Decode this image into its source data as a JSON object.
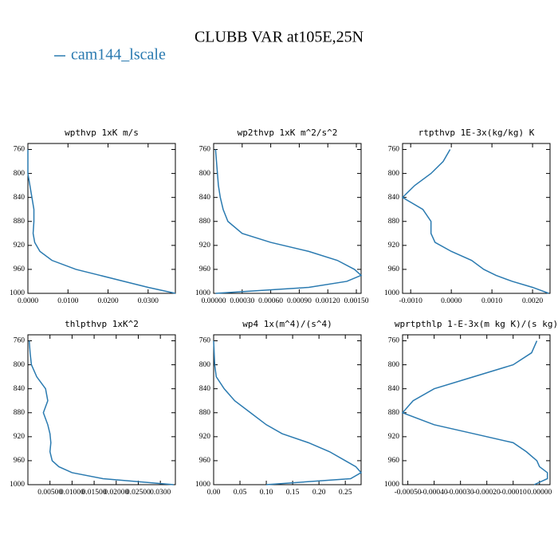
{
  "title": "CLUBB VAR at105E,25N",
  "legend": {
    "name": "cam144_lscale",
    "color": "#2a7ab0"
  },
  "chart_data": [
    {
      "type": "line",
      "title": "wpthvp  1xK m/s",
      "y": [
        760,
        780,
        800,
        820,
        840,
        860,
        880,
        900,
        915,
        930,
        945,
        960,
        970,
        980,
        990,
        1000
      ],
      "values": [
        0,
        0,
        0,
        0.0005,
        0.001,
        0.0015,
        0.0015,
        0.0013,
        0.0017,
        0.003,
        0.006,
        0.012,
        0.018,
        0.024,
        0.03,
        0.0368
      ],
      "xlim": [
        0,
        0.0368
      ],
      "xticks": [
        {
          "value": 0,
          "label": "0.0000"
        },
        {
          "value": 0.01,
          "label": "0.0100"
        },
        {
          "value": 0.02,
          "label": "0.0200"
        },
        {
          "value": 0.03,
          "label": "0.0300"
        }
      ],
      "ylim": [
        750,
        1000
      ],
      "yticks": [
        760,
        800,
        840,
        880,
        920,
        960,
        1000
      ],
      "invert_y": true
    },
    {
      "type": "line",
      "title": "wp2thvp  1xK m^2/s^2",
      "y": [
        760,
        780,
        800,
        820,
        840,
        860,
        880,
        900,
        915,
        930,
        945,
        960,
        970,
        980,
        990,
        1000
      ],
      "values": [
        2e-05,
        3e-05,
        4e-05,
        5e-05,
        7e-05,
        0.0001,
        0.00015,
        0.0003,
        0.0006,
        0.001,
        0.0013,
        0.00148,
        0.00155,
        0.0014,
        0.001,
        2e-05
      ],
      "xlim": [
        0,
        0.00155
      ],
      "xticks": [
        {
          "value": 0,
          "label": "0.00000"
        },
        {
          "value": 0.0003,
          "label": "0.00030"
        },
        {
          "value": 0.0006,
          "label": "0.00060"
        },
        {
          "value": 0.0009,
          "label": "0.00090"
        },
        {
          "value": 0.0012,
          "label": "0.00120"
        },
        {
          "value": 0.0015,
          "label": "0.00150"
        }
      ],
      "ylim": [
        750,
        1000
      ],
      "yticks": [
        760,
        800,
        840,
        880,
        920,
        960,
        1000
      ],
      "invert_y": true
    },
    {
      "type": "line",
      "title": "rtpthvp  1E-3x(kg/kg) K",
      "y": [
        760,
        780,
        800,
        820,
        840,
        860,
        880,
        900,
        915,
        930,
        945,
        960,
        970,
        980,
        990,
        1000
      ],
      "values": [
        -3e-05,
        -0.0002,
        -0.0005,
        -0.0009,
        -0.0012,
        -0.0007,
        -0.0005,
        -0.0005,
        -0.0004,
        0,
        0.0005,
        0.0008,
        0.0011,
        0.0015,
        0.002,
        0.0024
      ],
      "xlim": [
        -0.0012,
        0.00243
      ],
      "xticks": [
        {
          "value": -0.001,
          "label": "-0.0010"
        },
        {
          "value": 0,
          "label": "0.0000"
        },
        {
          "value": 0.001,
          "label": "0.0010"
        },
        {
          "value": 0.002,
          "label": "0.0020"
        }
      ],
      "ylim": [
        750,
        1000
      ],
      "yticks": [
        760,
        800,
        840,
        880,
        920,
        960,
        1000
      ],
      "invert_y": true
    },
    {
      "type": "line",
      "title": "thlpthvp  1xK^2",
      "y": [
        760,
        780,
        800,
        820,
        840,
        860,
        880,
        900,
        915,
        930,
        945,
        960,
        970,
        980,
        990,
        1000
      ],
      "values": [
        0.0003,
        0.0005,
        0.0008,
        0.002,
        0.004,
        0.0045,
        0.0035,
        0.0045,
        0.005,
        0.0052,
        0.005,
        0.0055,
        0.007,
        0.01,
        0.017,
        0.033
      ],
      "xlim": [
        0,
        0.0334
      ],
      "xticks": [
        {
          "value": 0.005,
          "label": "0.00500"
        },
        {
          "value": 0.01,
          "label": "0.01000"
        },
        {
          "value": 0.015,
          "label": "0.01500"
        },
        {
          "value": 0.02,
          "label": "0.02000"
        },
        {
          "value": 0.025,
          "label": "0.02500"
        },
        {
          "value": 0.03,
          "label": "0.0300"
        }
      ],
      "ylim": [
        750,
        1000
      ],
      "yticks": [
        760,
        800,
        840,
        880,
        920,
        960,
        1000
      ],
      "invert_y": true
    },
    {
      "type": "line",
      "title": "wp4  1x(m^4)/(s^4)",
      "y": [
        760,
        780,
        800,
        820,
        840,
        860,
        880,
        900,
        915,
        930,
        945,
        960,
        970,
        980,
        990,
        1000
      ],
      "values": [
        0,
        0.001,
        0.002,
        0.005,
        0.02,
        0.04,
        0.07,
        0.1,
        0.13,
        0.18,
        0.22,
        0.25,
        0.27,
        0.28,
        0.26,
        0.1
      ],
      "xlim": [
        0,
        0.28
      ],
      "xticks": [
        {
          "value": 0,
          "label": "0.00"
        },
        {
          "value": 0.05,
          "label": "0.05"
        },
        {
          "value": 0.1,
          "label": "0.10"
        },
        {
          "value": 0.15,
          "label": "0.15"
        },
        {
          "value": 0.2,
          "label": "0.20"
        },
        {
          "value": 0.25,
          "label": "0.25"
        }
      ],
      "ylim": [
        750,
        1000
      ],
      "yticks": [
        760,
        800,
        840,
        880,
        920,
        960,
        1000
      ],
      "invert_y": true
    },
    {
      "type": "line",
      "title": "wprtpthlp  1-E-3x(m kg K)/(s kg)",
      "y": [
        760,
        780,
        800,
        820,
        840,
        860,
        880,
        900,
        915,
        930,
        945,
        960,
        970,
        980,
        990,
        1000
      ],
      "values": [
        -1e-05,
        -3e-05,
        -0.0001,
        -0.00025,
        -0.0004,
        -0.00048,
        -0.00052,
        -0.0004,
        -0.00025,
        -0.0001,
        -5e-05,
        -1e-05,
        0,
        3e-05,
        3e-05,
        -2e-05
      ],
      "xlim": [
        -0.00052,
        4e-05
      ],
      "xticks": [
        {
          "value": -0.0005,
          "label": "-0.00050"
        },
        {
          "value": -0.0004,
          "label": "-0.00040"
        },
        {
          "value": -0.0003,
          "label": "-0.00030"
        },
        {
          "value": -0.0002,
          "label": "-0.00020"
        },
        {
          "value": -0.0001,
          "label": "-0.00010"
        },
        {
          "value": 0,
          "label": "0.00000"
        }
      ],
      "ylim": [
        750,
        1000
      ],
      "yticks": [
        760,
        800,
        840,
        880,
        920,
        960,
        1000
      ],
      "invert_y": true
    }
  ]
}
